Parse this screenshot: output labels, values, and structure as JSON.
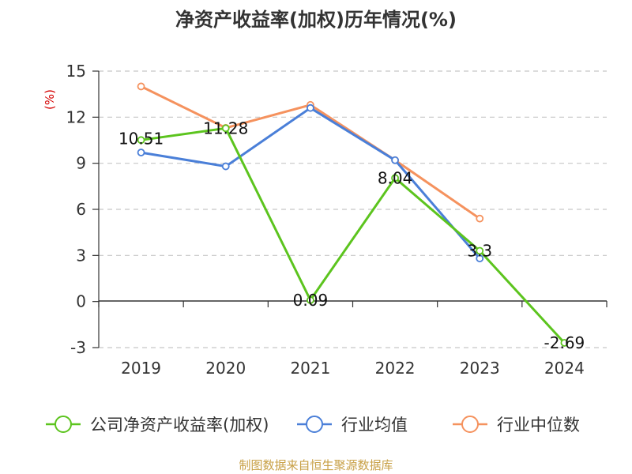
{
  "chart_data": {
    "type": "line",
    "title": "净资产收益率(加权)历年情况(%)",
    "ylabel": "(%)",
    "categories": [
      "2019",
      "2020",
      "2021",
      "2022",
      "2023",
      "2024"
    ],
    "ylim": [
      -3,
      15
    ],
    "yticks": [
      "-3",
      "0",
      "3",
      "6",
      "9",
      "12",
      "15"
    ],
    "grid": true,
    "legend_position": "bottom",
    "series": [
      {
        "name": "公司净资产收益率(加权)",
        "color": "#5cc41e",
        "values": [
          10.51,
          11.28,
          0.09,
          8.04,
          3.3,
          -2.69
        ],
        "labels": [
          "10.51",
          "11.28",
          "0.09",
          "8.04",
          "3.3",
          "-2.69"
        ]
      },
      {
        "name": "行业均值",
        "color": "#4a7fd8",
        "values": [
          9.7,
          8.8,
          12.6,
          9.2,
          2.8,
          null
        ]
      },
      {
        "name": "行业中位数",
        "color": "#f5925e",
        "values": [
          14.0,
          11.3,
          12.8,
          9.2,
          5.4,
          null
        ]
      }
    ]
  },
  "source": "制图数据来自恒生聚源数据库"
}
